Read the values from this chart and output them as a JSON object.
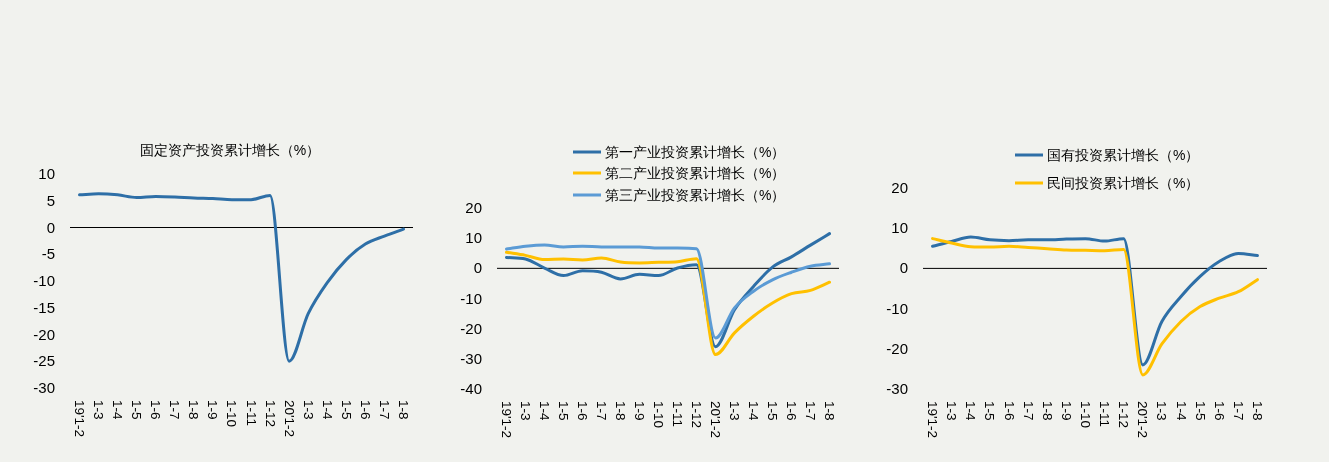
{
  "chart_data": [
    {
      "type": "line",
      "title": "固定资产投资累计增长（%）",
      "categories": [
        "19'1-2",
        "1-3",
        "1-4",
        "1-5",
        "1-6",
        "1-7",
        "1-8",
        "1-9",
        "1-10",
        "1-11",
        "1-12",
        "20'1-2",
        "1-3",
        "1-4",
        "1-5",
        "1-6",
        "1-7",
        "1-8"
      ],
      "series": [
        {
          "color": "#2e6fa7",
          "values": [
            6.1,
            6.3,
            6.1,
            5.6,
            5.8,
            5.7,
            5.5,
            5.4,
            5.2,
            5.2,
            6.0,
            -25.0,
            -16.1,
            -10.3,
            -6.0,
            -3.1,
            -1.6,
            -0.3
          ]
        }
      ],
      "ylim": [
        -30,
        10
      ],
      "yticks": [
        -30,
        -25,
        -20,
        -15,
        -10,
        -5,
        0,
        5,
        10
      ],
      "ref_lines": [
        {
          "axis": "y",
          "value": 0,
          "color": "#000000"
        }
      ],
      "legend": false
    },
    {
      "type": "line",
      "categories": [
        "19'1-2",
        "1-3",
        "1-4",
        "1-5",
        "1-6",
        "1-7",
        "1-8",
        "1-9",
        "1-10",
        "1-11",
        "1-12",
        "20'1-2",
        "1-3",
        "1-4",
        "1-5",
        "1-6",
        "1-7",
        "1-8"
      ],
      "series": [
        {
          "name": "第一产业投资累计增长（%）",
          "color": "#2e6fa7",
          "values": [
            3.6,
            3.1,
            0.1,
            -2.4,
            -0.8,
            -1.3,
            -3.5,
            -2.0,
            -2.4,
            0.1,
            1.2,
            -26.0,
            -13.7,
            -6.0,
            0.4,
            3.8,
            7.7,
            11.5
          ]
        },
        {
          "name": "第二产业投资累计增长（%）",
          "color": "#ffc000",
          "values": [
            5.3,
            4.3,
            2.9,
            3.1,
            2.8,
            3.4,
            2.1,
            1.8,
            2.0,
            2.2,
            3.2,
            -28.6,
            -21.4,
            -15.9,
            -11.5,
            -8.4,
            -7.3,
            -4.6
          ]
        },
        {
          "name": "第三产业投资累计增长（%）",
          "color": "#5b9bd5",
          "values": [
            6.4,
            7.3,
            7.7,
            7.1,
            7.3,
            7.1,
            7.1,
            7.1,
            6.7,
            6.7,
            6.5,
            -23.1,
            -13.1,
            -7.6,
            -3.8,
            -1.3,
            0.7,
            1.5
          ]
        }
      ],
      "ylim": [
        -40,
        20
      ],
      "yticks": [
        -40,
        -30,
        -20,
        -10,
        0,
        10,
        20
      ],
      "ref_lines": [
        {
          "axis": "y",
          "value": 0,
          "color": "#000000"
        }
      ],
      "legend": "top"
    },
    {
      "type": "line",
      "categories": [
        "19'1-2",
        "1-3",
        "1-4",
        "1-5",
        "1-6",
        "1-7",
        "1-8",
        "1-9",
        "1-10",
        "1-11",
        "1-12",
        "20'1-2",
        "1-3",
        "1-4",
        "1-5",
        "1-6",
        "1-7",
        "1-8"
      ],
      "series": [
        {
          "name": "国有投资累计增长（%）",
          "color": "#2e6fa7",
          "values": [
            5.5,
            6.7,
            7.8,
            7.1,
            6.9,
            7.1,
            7.1,
            7.3,
            7.4,
            6.8,
            7.4,
            -24.0,
            -13.2,
            -7.0,
            -2.0,
            1.7,
            3.7,
            3.2
          ]
        },
        {
          "name": "民间投资累计增长（%）",
          "color": "#ffc000",
          "values": [
            7.4,
            6.3,
            5.4,
            5.3,
            5.5,
            5.2,
            4.9,
            4.6,
            4.5,
            4.4,
            4.7,
            -26.5,
            -18.8,
            -13.2,
            -9.5,
            -7.4,
            -5.8,
            -2.8
          ]
        }
      ],
      "ylim": [
        -30,
        20
      ],
      "yticks": [
        -30,
        -20,
        -10,
        0,
        10,
        20
      ],
      "ref_lines": [
        {
          "axis": "y",
          "value": 0,
          "color": "#000000"
        }
      ],
      "legend": "top"
    }
  ]
}
